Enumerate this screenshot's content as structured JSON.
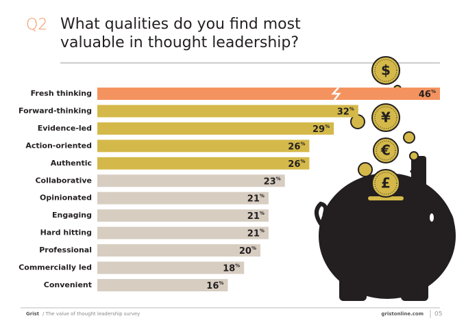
{
  "chart_data": {
    "type": "bar",
    "question_number": "Q2",
    "title": [
      "What qualities do you find most",
      "valuable in thought leadership?"
    ],
    "categories": [
      "Fresh thinking",
      "Forward-thinking",
      "Evidence-led",
      "Action-oriented",
      "Authentic",
      "Collaborative",
      "Opinionated",
      "Engaging",
      "Hard hitting",
      "Professional",
      "Commercially led",
      "Convenient"
    ],
    "values": [
      46,
      32,
      29,
      26,
      26,
      23,
      21,
      21,
      21,
      20,
      18,
      16
    ],
    "value_labels": [
      "46%",
      "32%",
      "29%",
      "26%",
      "26%",
      "23%",
      "21%",
      "21%",
      "21%",
      "20%",
      "18%",
      "16%"
    ],
    "colors": [
      "#f4935f",
      "#d4b94a",
      "#d4b94a",
      "#d4b94a",
      "#d4b94a",
      "#d7cdc1",
      "#d7cdc1",
      "#d7cdc1",
      "#d7cdc1",
      "#d7cdc1",
      "#d7cdc1",
      "#d7cdc1"
    ]
  },
  "illustration": {
    "coin_symbols": [
      "$",
      "¥",
      "€",
      "£"
    ]
  },
  "footer": {
    "brand": "Grist",
    "subtitle": "/ The value of thought leadership survey",
    "site": "gristonline.com",
    "page": "05"
  }
}
